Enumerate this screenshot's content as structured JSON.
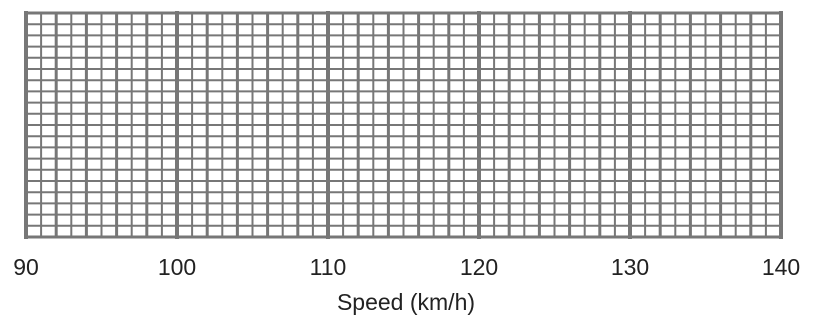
{
  "chart_data": {
    "type": "grid",
    "xlabel": "Speed (km/h)",
    "xlim": [
      90,
      140
    ],
    "x_ticks": [
      "90",
      "100",
      "110",
      "120",
      "130",
      "140"
    ],
    "major_step": 10,
    "minor_divisions_per_major": 5,
    "sub_minor_divisions_per_minor": 2,
    "horizontal_rows": 20,
    "grid": true
  },
  "colors": {
    "grid_line": "#777777",
    "background": "#ffffff",
    "text": "#222222"
  }
}
